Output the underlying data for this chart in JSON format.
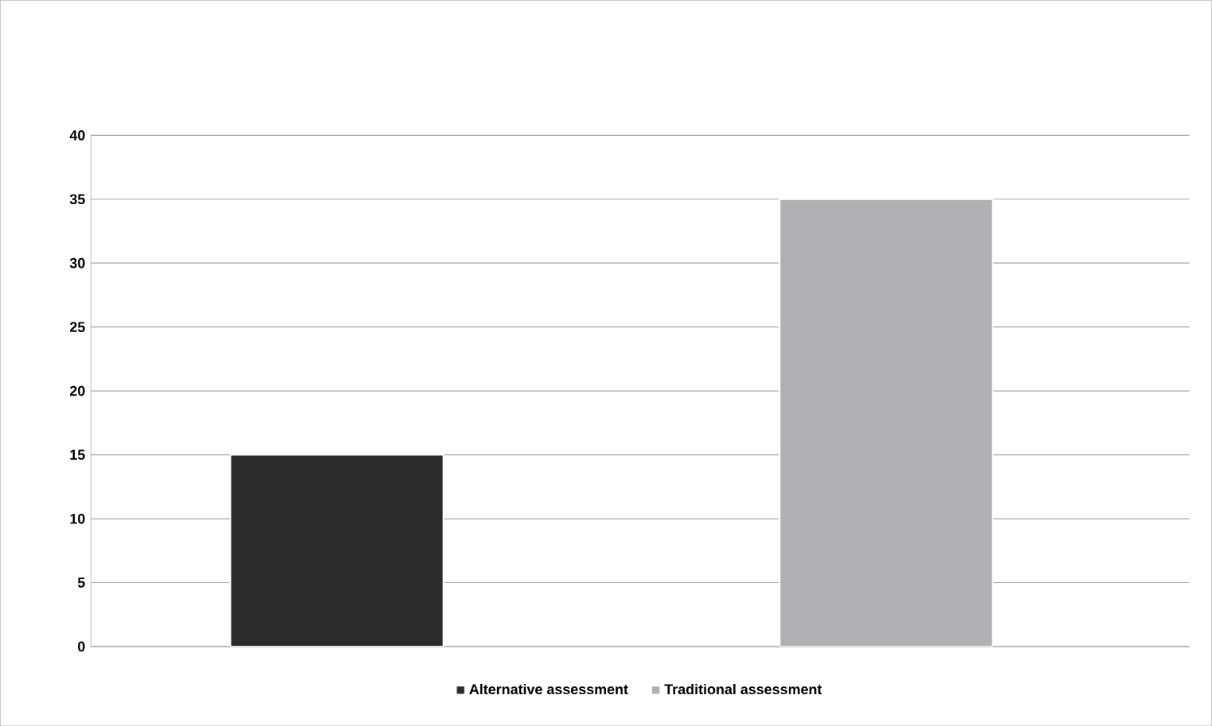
{
  "chart_data": {
    "type": "bar",
    "categories": [
      null,
      null
    ],
    "series": [
      {
        "name": "Alternative assessment",
        "color": "#2b2b2b",
        "values": [
          15,
          null
        ]
      },
      {
        "name": "Traditional assessment",
        "color": "#b0b0b2",
        "values": [
          null,
          35
        ]
      }
    ],
    "ylim": [
      0,
      40
    ],
    "yticks": [
      0,
      5,
      10,
      15,
      20,
      25,
      30,
      35,
      40
    ],
    "grid": "y",
    "legend": "bottom"
  }
}
